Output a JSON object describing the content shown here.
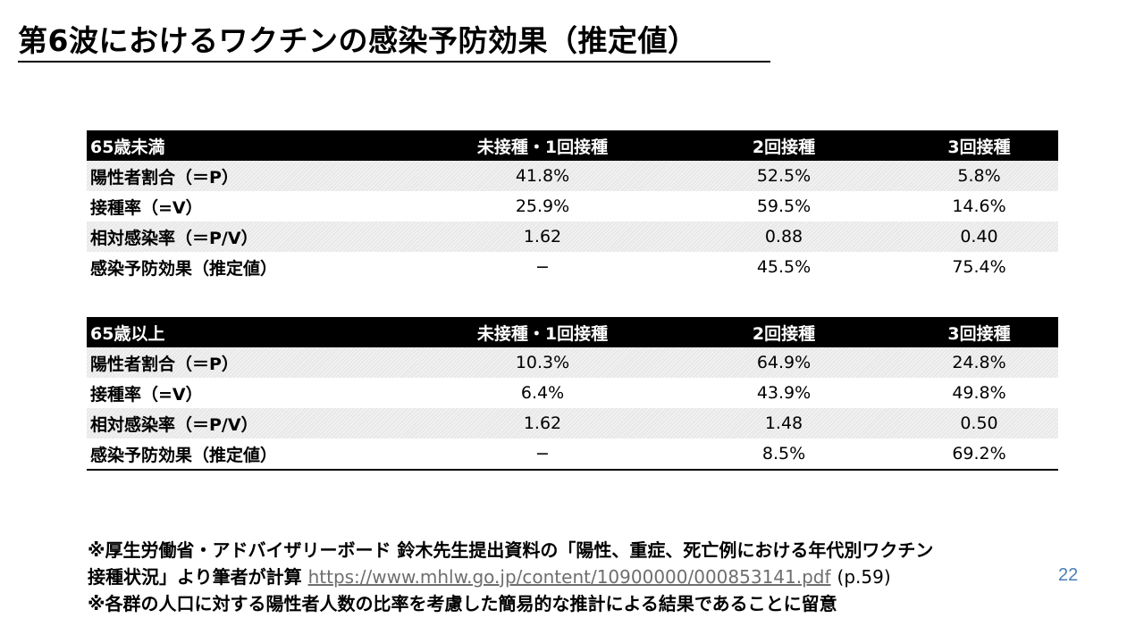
{
  "title": "第6波におけるワクチンの感染予防効果（推定値）",
  "tables": [
    {
      "group": "65歳未満",
      "columns": [
        "未接種・1回接種",
        "2回接種",
        "3回接種"
      ],
      "rows": [
        {
          "label": "陽性者割合（＝P）",
          "values": [
            "41.8%",
            "52.5%",
            "5.8%"
          ]
        },
        {
          "label": "接種率（=V）",
          "values": [
            "25.9%",
            "59.5%",
            "14.6%"
          ]
        },
        {
          "label": "相対感染率（＝P/V）",
          "values": [
            "1.62",
            "0.88",
            "0.40"
          ]
        },
        {
          "label": "感染予防効果（推定値）",
          "values": [
            "−",
            "45.5%",
            "75.4%"
          ]
        }
      ]
    },
    {
      "group": "65歳以上",
      "columns": [
        "未接種・1回接種",
        "2回接種",
        "3回接種"
      ],
      "rows": [
        {
          "label": "陽性者割合（＝P）",
          "values": [
            "10.3%",
            "64.9%",
            "24.8%"
          ]
        },
        {
          "label": "接種率（=V）",
          "values": [
            "6.4%",
            "43.9%",
            "49.8%"
          ]
        },
        {
          "label": "相対感染率（＝P/V）",
          "values": [
            "1.62",
            "1.48",
            "0.50"
          ]
        },
        {
          "label": "感染予防効果（推定値）",
          "values": [
            "−",
            "8.5%",
            "69.2%"
          ]
        }
      ]
    }
  ],
  "footnotes": {
    "line1": "※厚生労働省・アドバイザリーボード 鈴木先生提出資料の「陽性、重症、死亡例における年代別ワクチン",
    "line2_text": "接種状況」より筆者が計算",
    "line2_link": "https://www.mhlw.go.jp/content/10900000/000853141.pdf",
    "line2_page": "(p.59)",
    "line3": "※各群の人口に対する陽性者人数の比率を考慮した簡易的な推計による結果であることに留意"
  },
  "page_number": "22"
}
